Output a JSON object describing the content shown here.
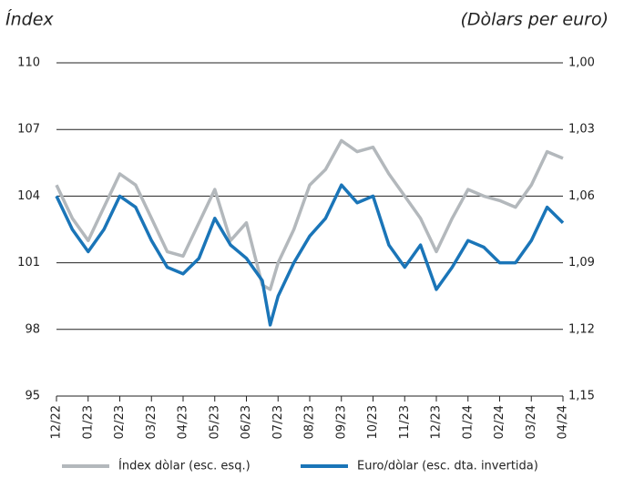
{
  "chart_data": {
    "type": "line",
    "y_label": "Índex",
    "y2_label": "(Dòlars per euro)",
    "x": [
      0,
      0.5,
      1,
      1.5,
      2,
      2.5,
      3,
      3.5,
      4,
      4.5,
      5,
      5.5,
      6,
      6.5,
      6.75,
      7,
      7.5,
      8,
      8.5,
      9,
      9.5,
      10,
      10.5,
      11,
      11.5,
      12,
      12.5,
      13,
      13.5,
      14,
      14.5,
      15,
      15.5,
      16
    ],
    "xlim": [
      0,
      16
    ],
    "xticks": [
      {
        "value": 0,
        "label": "12/22"
      },
      {
        "value": 1,
        "label": "01/23"
      },
      {
        "value": 2,
        "label": "02/23"
      },
      {
        "value": 3,
        "label": "03/23"
      },
      {
        "value": 4,
        "label": "04/23"
      },
      {
        "value": 5,
        "label": "05/23"
      },
      {
        "value": 6,
        "label": "06/23"
      },
      {
        "value": 7,
        "label": "07/23"
      },
      {
        "value": 8,
        "label": "08/23"
      },
      {
        "value": 9,
        "label": "09/23"
      },
      {
        "value": 10,
        "label": "10/23"
      },
      {
        "value": 11,
        "label": "11/23"
      },
      {
        "value": 12,
        "label": "12/23"
      },
      {
        "value": 13,
        "label": "01/24"
      },
      {
        "value": 14,
        "label": "02/24"
      },
      {
        "value": 15,
        "label": "03/24"
      },
      {
        "value": 16,
        "label": "04/24"
      }
    ],
    "ylim": [
      95,
      110
    ],
    "yticks": [
      95,
      98,
      101,
      104,
      107,
      110
    ],
    "y2lim": [
      1.15,
      1.0
    ],
    "y2ticks": [
      {
        "value": 1.15,
        "label": "1,15"
      },
      {
        "value": 1.12,
        "label": "1,12"
      },
      {
        "value": 1.09,
        "label": "1,09"
      },
      {
        "value": 1.06,
        "label": "1,06"
      },
      {
        "value": 1.03,
        "label": "1,03"
      },
      {
        "value": 1.0,
        "label": "1,00"
      }
    ],
    "grid": true,
    "legend": "bottom",
    "series": [
      {
        "name": "Índex dòlar (esc. esq.)",
        "color": "#b3b8bc",
        "values": [
          104.5,
          103,
          102,
          103.5,
          105,
          104.5,
          103,
          101.5,
          101.3,
          102.8,
          104.3,
          102,
          102.8,
          100,
          99.8,
          101,
          102.5,
          104.5,
          105.2,
          106.5,
          106,
          106.2,
          105,
          104,
          103,
          101.5,
          103,
          104.3,
          104,
          103.8,
          103.5,
          104.5,
          106,
          105.7
        ]
      },
      {
        "name": "Euro/dòlar (esc. dta. invertida)",
        "color": "#1a75b8",
        "axis": "y2",
        "values": [
          1.06,
          1.075,
          1.085,
          1.075,
          1.06,
          1.065,
          1.08,
          1.092,
          1.095,
          1.088,
          1.07,
          1.082,
          1.088,
          1.098,
          1.118,
          1.105,
          1.09,
          1.078,
          1.07,
          1.055,
          1.063,
          1.06,
          1.082,
          1.092,
          1.082,
          1.102,
          1.092,
          1.08,
          1.083,
          1.09,
          1.09,
          1.08,
          1.065,
          1.072
        ]
      }
    ]
  }
}
